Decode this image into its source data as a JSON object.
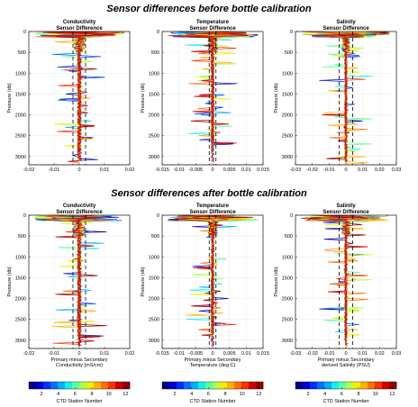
{
  "sections": [
    {
      "title": "Sensor differences before bottle calibration"
    },
    {
      "title": "Sensor differences after bottle calibration"
    }
  ],
  "colorbar": {
    "label": "CTD Station Number",
    "ticks": [
      "2",
      "4",
      "6",
      "8",
      "10",
      "12"
    ],
    "colors": [
      "#00008f",
      "#0000d0",
      "#0030ff",
      "#0070ff",
      "#00b0ff",
      "#10f0f0",
      "#60ffa0",
      "#b0ff50",
      "#f0f000",
      "#ffb000",
      "#ff7000",
      "#ff3000",
      "#d00000",
      "#900000"
    ]
  },
  "colors": {
    "dashed": "#000000",
    "trace_primary": "#c81414"
  },
  "chart_data": [
    {
      "type": "line",
      "title_lines": [
        "Conductivity",
        "Sensor Difference"
      ],
      "ylabel": "Pressure (db)",
      "xlabel_lines": [],
      "xlim": [
        -0.02,
        0.02
      ],
      "ylim": [
        3200,
        0
      ],
      "xticks": [
        "-0.02",
        "-0.01",
        "0",
        "0.01",
        "0.02"
      ],
      "xtick_values": [
        -0.02,
        -0.01,
        0,
        0.01,
        0.02
      ],
      "yticks": [
        "0",
        "500",
        "1000",
        "1500",
        "2000",
        "2500",
        "3000"
      ],
      "ytick_values": [
        0,
        500,
        1000,
        1500,
        2000,
        2500,
        3000
      ],
      "dashed_x": [
        -0.0025,
        0.0025
      ],
      "spread": 0.002
    },
    {
      "type": "line",
      "title_lines": [
        "Temperature",
        "Sensor Difference"
      ],
      "ylabel": "Pressure (db)",
      "xlabel_lines": [],
      "xlim": [
        -0.015,
        0.015
      ],
      "ylim": [
        3200,
        0
      ],
      "xticks": [
        "-0.015",
        "-0.01",
        "-0.005",
        "0",
        "0.005",
        "0.01",
        "0.015"
      ],
      "xtick_values": [
        -0.015,
        -0.01,
        -0.005,
        0,
        0.005,
        0.01,
        0.015
      ],
      "yticks": [
        "0",
        "500",
        "1000",
        "1500",
        "2000",
        "2500",
        "3000"
      ],
      "ytick_values": [
        0,
        500,
        1000,
        1500,
        2000,
        2500,
        3000
      ],
      "dashed_x": [
        -0.001,
        0.001
      ],
      "spread": 0.0012
    },
    {
      "type": "line",
      "title_lines": [
        "Salinity",
        "Sensor Difference"
      ],
      "ylabel": "Pressure (db)",
      "xlabel_lines": [],
      "xlim": [
        -0.03,
        0.03
      ],
      "ylim": [
        3200,
        0
      ],
      "xticks": [
        "-0.03",
        "-0.02",
        "-0.01",
        "0",
        "0.01",
        "0.02",
        "0.03"
      ],
      "xtick_values": [
        -0.03,
        -0.02,
        -0.01,
        0,
        0.01,
        0.02,
        0.03
      ],
      "yticks": [
        "0",
        "500",
        "1000",
        "1500",
        "2000",
        "2500",
        "3000"
      ],
      "ytick_values": [
        0,
        500,
        1000,
        1500,
        2000,
        2500,
        3000
      ],
      "dashed_x": [
        -0.004,
        0.004
      ],
      "spread": 0.002
    },
    {
      "type": "line",
      "title_lines": [
        "Conductivity",
        "Sensor Difference"
      ],
      "ylabel": "Pressure (db)",
      "xlabel_lines": [
        "Primary minus Secondary",
        "Conductivity (mS/cm)"
      ],
      "xlim": [
        -0.02,
        0.02
      ],
      "ylim": [
        3200,
        0
      ],
      "xticks": [
        "-0.02",
        "-0.01",
        "0",
        "0.01",
        "0.02"
      ],
      "xtick_values": [
        -0.02,
        -0.01,
        0,
        0.01,
        0.02
      ],
      "yticks": [
        "0",
        "500",
        "1000",
        "1500",
        "2000",
        "2500",
        "3000"
      ],
      "ytick_values": [
        0,
        500,
        1000,
        1500,
        2000,
        2500,
        3000
      ],
      "dashed_x": [
        -0.0025,
        0.0025
      ],
      "spread": 0.002
    },
    {
      "type": "line",
      "title_lines": [
        "Temperature",
        "Sensor Difference"
      ],
      "ylabel": "Pressure (db)",
      "xlabel_lines": [
        "Primary minus Secondary",
        "Temperature (deg C)"
      ],
      "xlim": [
        -0.015,
        0.015
      ],
      "ylim": [
        3200,
        0
      ],
      "xticks": [
        "-0.015",
        "-0.01",
        "-0.005",
        "0",
        "0.005",
        "0.01",
        "0.015"
      ],
      "xtick_values": [
        -0.015,
        -0.01,
        -0.005,
        0,
        0.005,
        0.01,
        0.015
      ],
      "yticks": [
        "0",
        "500",
        "1000",
        "1500",
        "2000",
        "2500",
        "3000"
      ],
      "ytick_values": [
        0,
        500,
        1000,
        1500,
        2000,
        2500,
        3000
      ],
      "dashed_x": [
        -0.001,
        0.001
      ],
      "spread": 0.0012
    },
    {
      "type": "line",
      "title_lines": [
        "Salinity",
        "Sensor Difference"
      ],
      "ylabel": "Pressure (db)",
      "xlabel_lines": [
        "Primary minus Secondary",
        "derived Salinity (PSU)"
      ],
      "xlim": [
        -0.03,
        0.03
      ],
      "ylim": [
        3200,
        0
      ],
      "xticks": [
        "-0.03",
        "-0.02",
        "-0.01",
        "0",
        "0.01",
        "0.02",
        "0.03"
      ],
      "xtick_values": [
        -0.03,
        -0.02,
        -0.01,
        0,
        0.01,
        0.02,
        0.03
      ],
      "yticks": [
        "0",
        "500",
        "1000",
        "1500",
        "2000",
        "2500",
        "3000"
      ],
      "ytick_values": [
        0,
        500,
        1000,
        1500,
        2000,
        2500,
        3000
      ],
      "dashed_x": [
        -0.004,
        0.004
      ],
      "spread": 0.002
    }
  ]
}
